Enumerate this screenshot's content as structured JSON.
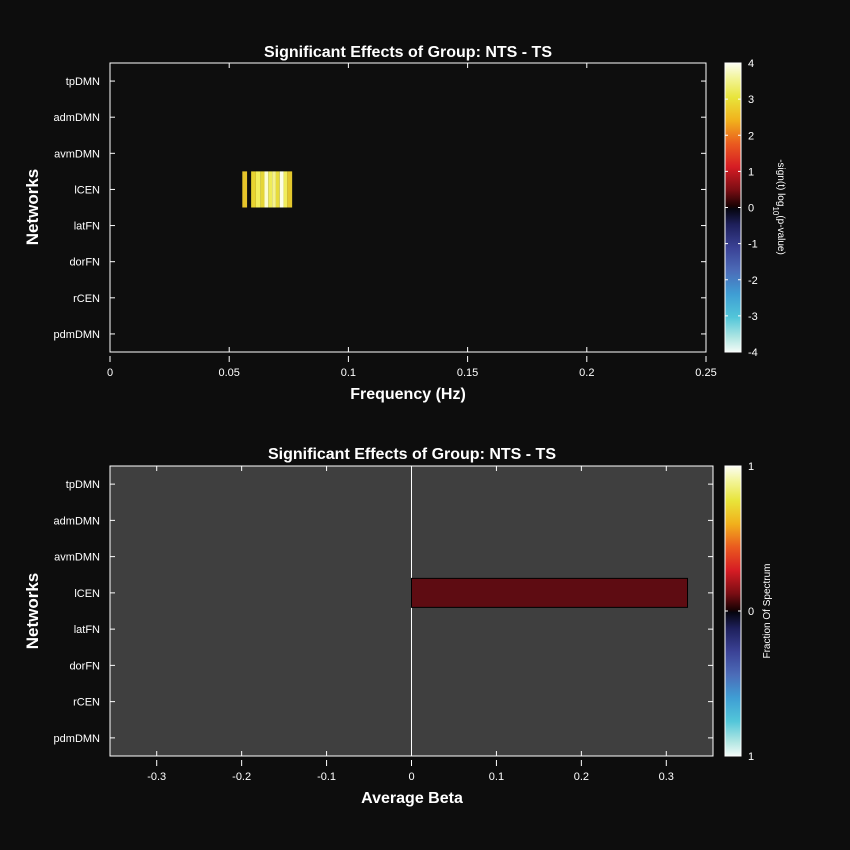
{
  "chart_data": [
    {
      "type": "heatmap",
      "title": "Significant Effects of Group: NTS - TS",
      "xlabel": "Frequency (Hz)",
      "ylabel": "Networks",
      "xlim": [
        0,
        0.25
      ],
      "x_ticks": [
        0,
        0.05,
        0.1,
        0.15,
        0.2,
        0.25
      ],
      "x_tick_labels": [
        "0",
        "0.05",
        "0.1",
        "0.15",
        "0.2",
        "0.25"
      ],
      "categories": [
        "tpDMN",
        "admDMN",
        "avmDMN",
        "lCEN",
        "latFN",
        "dorFN",
        "rCEN",
        "pdmDMN"
      ],
      "background": "#0e0e0e",
      "cells": [
        {
          "network": "lCEN",
          "x_start": 0.0555,
          "x_end": 0.0575,
          "value": 3.1,
          "color": "#e6c42a"
        },
        {
          "network": "lCEN",
          "x_start": 0.0592,
          "x_end": 0.0612,
          "value": 3.3,
          "color": "#e8d430"
        },
        {
          "network": "lCEN",
          "x_start": 0.0612,
          "x_end": 0.0632,
          "value": 3.5,
          "color": "#f3ee5a"
        },
        {
          "network": "lCEN",
          "x_start": 0.0632,
          "x_end": 0.0648,
          "value": 3.2,
          "color": "#e5d636"
        },
        {
          "network": "lCEN",
          "x_start": 0.0648,
          "x_end": 0.0664,
          "value": 3.8,
          "color": "#fbfcd0"
        },
        {
          "network": "lCEN",
          "x_start": 0.0664,
          "x_end": 0.068,
          "value": 3.4,
          "color": "#efec58"
        },
        {
          "network": "lCEN",
          "x_start": 0.068,
          "x_end": 0.0696,
          "value": 3.6,
          "color": "#f6f38c"
        },
        {
          "network": "lCEN",
          "x_start": 0.0696,
          "x_end": 0.0712,
          "value": 3.2,
          "color": "#e7db3a"
        },
        {
          "network": "lCEN",
          "x_start": 0.0712,
          "x_end": 0.0728,
          "value": 3.9,
          "color": "#fcfde8"
        },
        {
          "network": "lCEN",
          "x_start": 0.0728,
          "x_end": 0.0744,
          "value": 3.4,
          "color": "#f0ec5c"
        },
        {
          "network": "lCEN",
          "x_start": 0.0744,
          "x_end": 0.0764,
          "value": 3.1,
          "color": "#e3c72d"
        }
      ],
      "colorbar": {
        "label": "-sign(t) log10(p-value)",
        "range": [
          -4,
          4
        ],
        "ticks": [
          4,
          3,
          2,
          1,
          0,
          -1,
          -2,
          -3,
          -4
        ],
        "tick_labels": [
          "4",
          "3",
          "2",
          "1",
          "0",
          "-1",
          "-2",
          "-3",
          "-4"
        ]
      }
    },
    {
      "type": "bar",
      "orientation": "horizontal",
      "title": "Significant Effects of Group: NTS - TS",
      "xlabel": "Average Beta",
      "ylabel": "Networks",
      "xlim": [
        -0.355,
        0.355
      ],
      "x_ticks": [
        -0.3,
        -0.2,
        -0.1,
        0,
        0.1,
        0.2,
        0.3
      ],
      "x_tick_labels": [
        "-0.3",
        "-0.2",
        "-0.1",
        "0",
        "0.1",
        "0.2",
        "0.3"
      ],
      "categories": [
        "tpDMN",
        "admDMN",
        "avmDMN",
        "lCEN",
        "latFN",
        "dorFN",
        "rCEN",
        "pdmDMN"
      ],
      "values": [
        0,
        0,
        0,
        0.325,
        0,
        0,
        0,
        0
      ],
      "bar_color": "#5e0c12",
      "background": "#3f3f3f",
      "zero_line": true,
      "colorbar": {
        "label": "Fraction Of Spectrum",
        "range": [
          -1,
          1
        ],
        "ticks": [
          1,
          0,
          -1
        ],
        "tick_labels": [
          "1",
          "0",
          "1"
        ]
      }
    }
  ]
}
